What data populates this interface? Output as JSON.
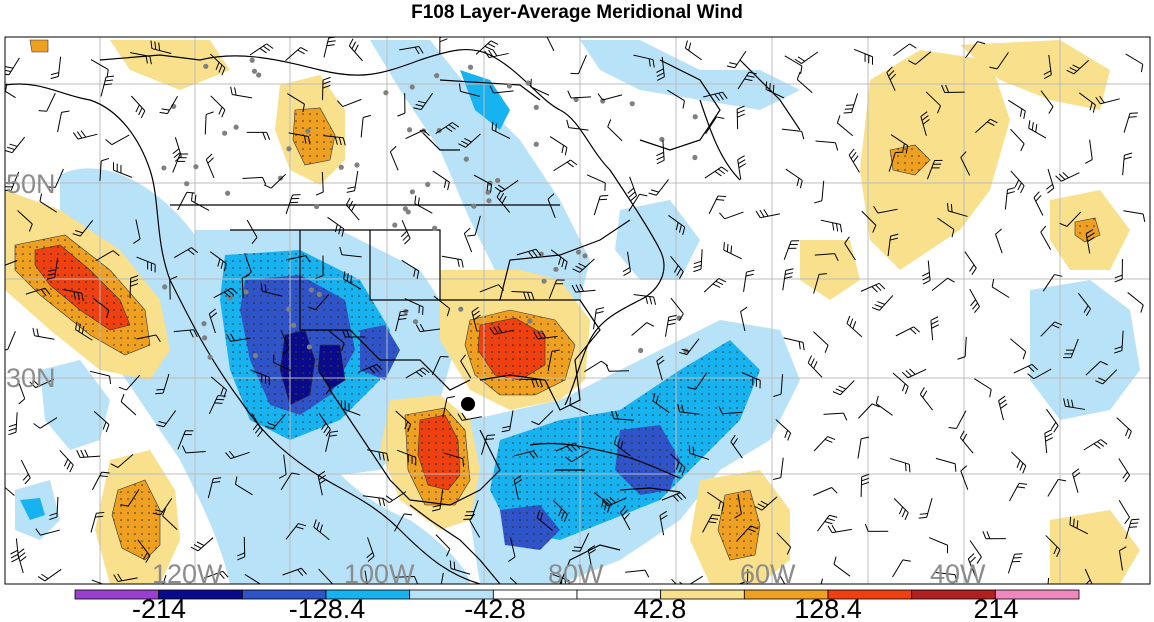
{
  "title": "F108 Layer-Average Meridional Wind",
  "latitude_labels": [
    "50N",
    "30N"
  ],
  "longitude_labels": [
    "120W",
    "100W",
    "80W",
    "60W",
    "40W"
  ],
  "colorbar": {
    "colors": [
      "#9a3fd0",
      "#0a0a8c",
      "#2f53c8",
      "#17b2f0",
      "#b8e2f8",
      "#ffffff",
      "#ffffff",
      "#f8e08c",
      "#f0a020",
      "#f04010",
      "#b02020",
      "#f088c0"
    ],
    "labels": [
      "-214",
      "-128.4",
      "-42.8",
      "42.8",
      "128.4",
      "214"
    ]
  },
  "fill_palette": {
    "light_blue": "#b8e2f8",
    "blue": "#17b2f0",
    "medium_blue": "#2f53c8",
    "dark_blue": "#0a0a8c",
    "yellow": "#f8e08c",
    "orange": "#f0a020",
    "red_orange": "#f04010"
  },
  "map_features": {
    "storm_center_marker": "black-dot-icon",
    "station_markers": "gray-dot-icon",
    "wind_barbs": "wind-barb-icon"
  }
}
